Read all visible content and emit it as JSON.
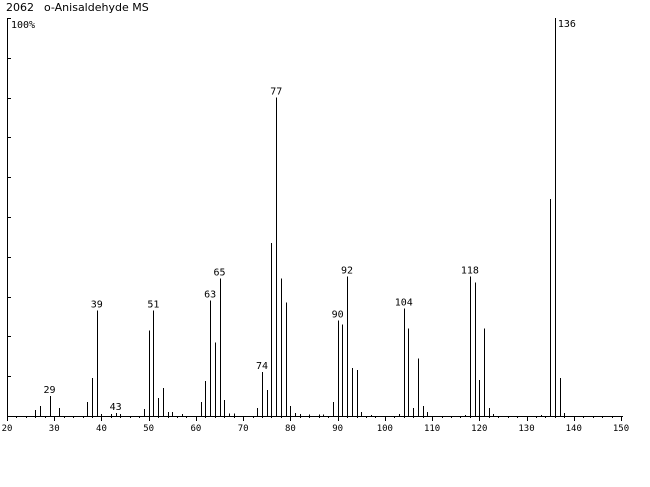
{
  "header": {
    "id": "2062",
    "title": "o-Anisaldehyde MS"
  },
  "chart_data": {
    "type": "bar",
    "title": "o-Anisaldehyde MS",
    "xlabel": "",
    "ylabel": "",
    "xlim": [
      20,
      150
    ],
    "ylim": [
      0,
      100
    ],
    "x_ticks": [
      20,
      30,
      40,
      50,
      60,
      70,
      80,
      90,
      100,
      110,
      120,
      130,
      140,
      150
    ],
    "y_max_label": "100%",
    "grid": false,
    "peaks": [
      {
        "mz": 26,
        "rel": 1.5
      },
      {
        "mz": 27,
        "rel": 2.5
      },
      {
        "mz": 29,
        "rel": 5
      },
      {
        "mz": 31,
        "rel": 2
      },
      {
        "mz": 37,
        "rel": 3.5
      },
      {
        "mz": 38,
        "rel": 9.5
      },
      {
        "mz": 39,
        "rel": 26.5
      },
      {
        "mz": 40,
        "rel": 0.5
      },
      {
        "mz": 42,
        "rel": 0.5
      },
      {
        "mz": 43,
        "rel": 0.8
      },
      {
        "mz": 44,
        "rel": 0.5
      },
      {
        "mz": 49,
        "rel": 1.8
      },
      {
        "mz": 50,
        "rel": 21.5
      },
      {
        "mz": 51,
        "rel": 26.5
      },
      {
        "mz": 52,
        "rel": 4.5
      },
      {
        "mz": 53,
        "rel": 7
      },
      {
        "mz": 54,
        "rel": 1
      },
      {
        "mz": 55,
        "rel": 1
      },
      {
        "mz": 57,
        "rel": 0.5
      },
      {
        "mz": 61,
        "rel": 3.5
      },
      {
        "mz": 62,
        "rel": 8.8
      },
      {
        "mz": 63,
        "rel": 29
      },
      {
        "mz": 64,
        "rel": 18.5
      },
      {
        "mz": 65,
        "rel": 34.5
      },
      {
        "mz": 66,
        "rel": 4
      },
      {
        "mz": 67,
        "rel": 0.6
      },
      {
        "mz": 68,
        "rel": 0.6
      },
      {
        "mz": 73,
        "rel": 2
      },
      {
        "mz": 74,
        "rel": 11
      },
      {
        "mz": 75,
        "rel": 6.5
      },
      {
        "mz": 76,
        "rel": 43.5
      },
      {
        "mz": 77,
        "rel": 80
      },
      {
        "mz": 78,
        "rel": 34.5
      },
      {
        "mz": 79,
        "rel": 28.5
      },
      {
        "mz": 80,
        "rel": 2.5
      },
      {
        "mz": 81,
        "rel": 0.8
      },
      {
        "mz": 82,
        "rel": 0.5
      },
      {
        "mz": 84,
        "rel": 0.4
      },
      {
        "mz": 86,
        "rel": 0.4
      },
      {
        "mz": 87,
        "rel": 0.4
      },
      {
        "mz": 89,
        "rel": 3.5
      },
      {
        "mz": 90,
        "rel": 24
      },
      {
        "mz": 91,
        "rel": 23
      },
      {
        "mz": 92,
        "rel": 35
      },
      {
        "mz": 93,
        "rel": 12
      },
      {
        "mz": 94,
        "rel": 11.5
      },
      {
        "mz": 95,
        "rel": 1
      },
      {
        "mz": 97,
        "rel": 0.3
      },
      {
        "mz": 103,
        "rel": 0.5
      },
      {
        "mz": 104,
        "rel": 27
      },
      {
        "mz": 105,
        "rel": 22
      },
      {
        "mz": 106,
        "rel": 2
      },
      {
        "mz": 107,
        "rel": 14.5
      },
      {
        "mz": 108,
        "rel": 2.5
      },
      {
        "mz": 109,
        "rel": 1
      },
      {
        "mz": 117,
        "rel": 0.3
      },
      {
        "mz": 118,
        "rel": 35
      },
      {
        "mz": 119,
        "rel": 33.5
      },
      {
        "mz": 120,
        "rel": 9
      },
      {
        "mz": 121,
        "rel": 22
      },
      {
        "mz": 122,
        "rel": 2
      },
      {
        "mz": 123,
        "rel": 0.5
      },
      {
        "mz": 133,
        "rel": 0.3
      },
      {
        "mz": 135,
        "rel": 54.5
      },
      {
        "mz": 136,
        "rel": 100
      },
      {
        "mz": 137,
        "rel": 9.5
      },
      {
        "mz": 138,
        "rel": 0.8
      }
    ],
    "labeled_peaks": [
      29,
      39,
      43,
      51,
      63,
      65,
      74,
      77,
      90,
      92,
      104,
      118,
      136
    ]
  }
}
